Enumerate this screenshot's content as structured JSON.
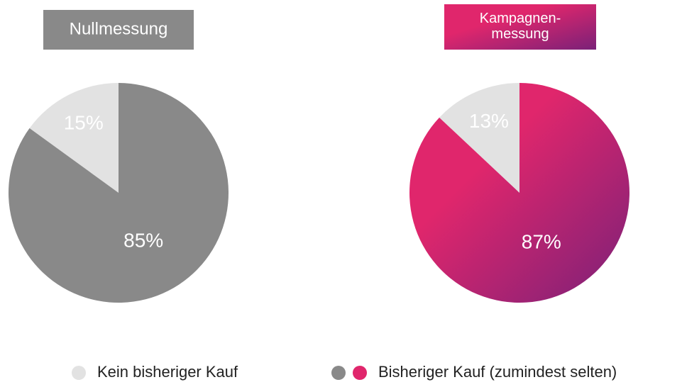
{
  "chart_data": [
    {
      "type": "pie",
      "title": "Nullmessung",
      "categories": [
        "Kein bisheriger Kauf",
        "Bisheriger Kauf (zumindest selten)"
      ],
      "values": [
        15,
        85
      ],
      "value_labels": [
        "15%",
        "85%"
      ],
      "colors": [
        "#e2e2e2",
        "#898989"
      ]
    },
    {
      "type": "pie",
      "title": "Kampagnen-\nmessung",
      "values": [
        13,
        87
      ],
      "value_labels": [
        "13%",
        "87%"
      ],
      "colors": [
        "#e2e2e2",
        "#e0266c"
      ],
      "gradient_to": "#7a2178"
    }
  ]
}
